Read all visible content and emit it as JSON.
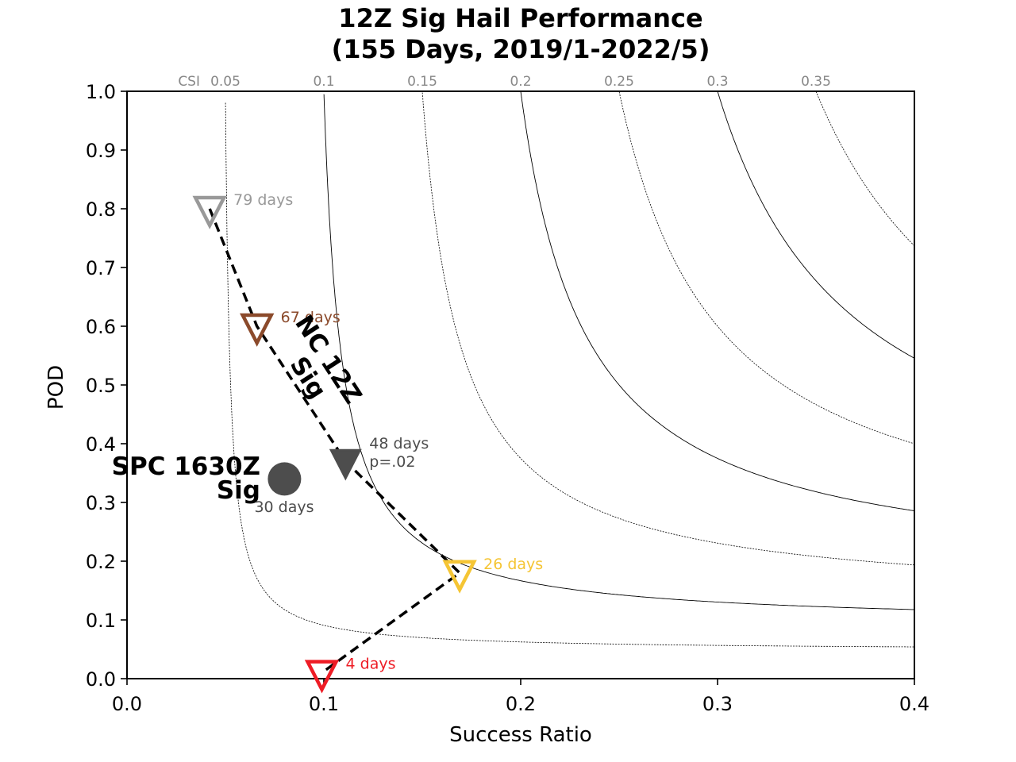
{
  "chart_data": {
    "type": "scatter",
    "title": "12Z Sig Hail Performance",
    "subtitle": "(155 Days, 2019/1-2022/5)",
    "xlabel": "Success Ratio",
    "ylabel": "POD",
    "xlim": [
      0.0,
      0.4
    ],
    "ylim": [
      0.0,
      1.0
    ],
    "x_ticks": [
      "0.0",
      "0.1",
      "0.2",
      "0.3",
      "0.4"
    ],
    "y_ticks": [
      "0.0",
      "0.1",
      "0.2",
      "0.3",
      "0.4",
      "0.5",
      "0.6",
      "0.7",
      "0.8",
      "0.9",
      "1.0"
    ],
    "csi_prefix": "CSI",
    "csi_contours": [
      {
        "value": 0.05,
        "label": "0.05",
        "style": "dotted"
      },
      {
        "value": 0.1,
        "label": "0.1",
        "style": "solid"
      },
      {
        "value": 0.15,
        "label": "0.15",
        "style": "dotted"
      },
      {
        "value": 0.2,
        "label": "0.2",
        "style": "solid"
      },
      {
        "value": 0.25,
        "label": "0.25",
        "style": "dotted"
      },
      {
        "value": 0.3,
        "label": "0.3",
        "style": "solid"
      },
      {
        "value": 0.35,
        "label": "0.35",
        "style": "dotted"
      }
    ],
    "nc_series": {
      "name_lines": [
        "NC 12Z",
        "Sig"
      ],
      "points": [
        {
          "x": 0.042,
          "y": 0.8,
          "label": "79 days",
          "color": "#999999",
          "filled": false
        },
        {
          "x": 0.066,
          "y": 0.6,
          "label": "67 days",
          "color": "#8b4a2b",
          "filled": false
        },
        {
          "x": 0.111,
          "y": 0.37,
          "label": "48 days",
          "label2": "p=.02",
          "color": "#4d4d4d",
          "filled": true
        },
        {
          "x": 0.169,
          "y": 0.18,
          "label": "26 days",
          "color": "#f5c534",
          "filled": false
        },
        {
          "x": 0.099,
          "y": 0.01,
          "label": "4 days",
          "color": "#ee1c25",
          "filled": false
        }
      ]
    },
    "spc_point": {
      "name_lines": [
        "SPC 1630Z",
        "Sig"
      ],
      "x": 0.08,
      "y": 0.34,
      "label": "30 days",
      "color": "#4d4d4d"
    }
  }
}
